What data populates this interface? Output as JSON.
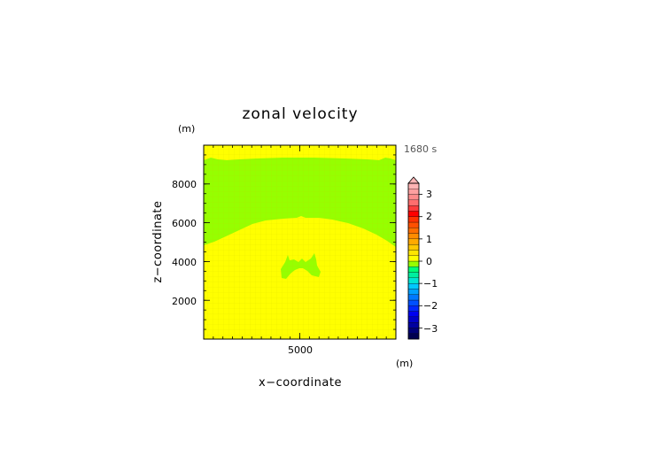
{
  "chart_data": {
    "type": "heatmap",
    "title": "zonal velocity",
    "time_label": "1680 s",
    "xlabel": "x−coordinate",
    "ylabel": "z−coordinate",
    "x_unit": "(m)",
    "z_unit": "(m)",
    "xlim": [
      0,
      10000
    ],
    "zlim": [
      0,
      10000
    ],
    "x_ticks": [
      5000
    ],
    "x_tick_labels": [
      "5000"
    ],
    "z_ticks": [
      2000,
      4000,
      6000,
      8000
    ],
    "z_tick_labels": [
      "2000",
      "4000",
      "6000",
      "8000"
    ],
    "colorbar": {
      "levels": [
        -3.5,
        -3.25,
        -3,
        -2.75,
        -2.5,
        -2.25,
        -2,
        -1.75,
        -1.5,
        -1.25,
        -1,
        -0.75,
        -0.5,
        -0.25,
        0,
        0.25,
        0.5,
        0.75,
        1,
        1.25,
        1.5,
        1.75,
        2,
        2.25,
        2.5,
        2.75,
        3,
        3.25,
        3.5
      ],
      "colors": [
        "#000050",
        "#000078",
        "#0000a0",
        "#0000c8",
        "#0000f0",
        "#0028ff",
        "#0050ff",
        "#0078ff",
        "#00a0ff",
        "#00c8ff",
        "#00e6d2",
        "#00f0a0",
        "#00ff78",
        "#96ff00",
        "#ffff00",
        "#ffe600",
        "#ffc800",
        "#ffaa00",
        "#ff8c00",
        "#ff6e00",
        "#ff5000",
        "#ff3200",
        "#ff0000",
        "#ff3c3c",
        "#ff6e6e",
        "#ff8c8c",
        "#ffa0a0",
        "#ffb4b4"
      ],
      "tick_values": [
        -3,
        -2,
        -1,
        0,
        1,
        2,
        3
      ],
      "tick_labels": [
        "−3",
        "−2",
        "−1",
        "0",
        "1",
        "2",
        "3"
      ],
      "extend": "max"
    },
    "regions": [
      {
        "level_range": [
          0,
          0.25
        ],
        "color": "#ffff00",
        "description_value": "background"
      },
      {
        "level_range": [
          -0.25,
          0
        ],
        "color": "#96ff00",
        "upper_band_z_range": [
          4700,
          9400
        ],
        "blob_center": [
          5000,
          3900
        ]
      }
    ],
    "grid": true
  }
}
